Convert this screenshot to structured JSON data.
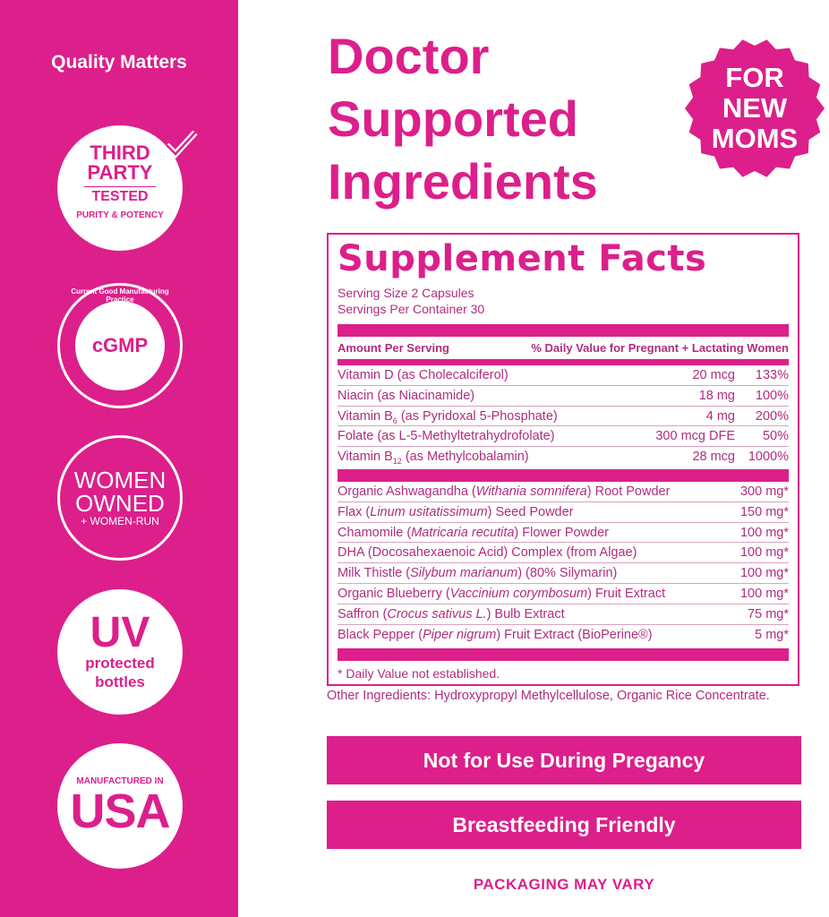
{
  "colors": {
    "brand_pink": "#dc1f8b",
    "text": "#b02d7d"
  },
  "sidebar": {
    "heading": "Quality Matters",
    "badges": [
      {
        "icon": "third-party-tested-icon",
        "lines": [
          "THIRD",
          "PARTY",
          "TESTED",
          "PURITY & POTENCY"
        ]
      },
      {
        "icon": "cgmp-icon",
        "lines": [
          "cGMP",
          "Current Good Manufacturing Practice"
        ]
      },
      {
        "icon": "women-owned-icon",
        "lines": [
          "WOMEN",
          "OWNED",
          "+ WOMEN-RUN"
        ]
      },
      {
        "icon": "uv-protected-icon",
        "lines": [
          "UV",
          "protected",
          "bottles"
        ]
      },
      {
        "icon": "made-in-usa-icon",
        "lines": [
          "MANUFACTURED IN",
          "USA"
        ]
      }
    ]
  },
  "title": [
    "Doctor",
    "Supported",
    "Ingredients"
  ],
  "sticker": [
    "FOR",
    "NEW",
    "MOMS"
  ],
  "facts": {
    "heading": "Supplement Facts",
    "serving_size": "Serving Size 2 Capsules",
    "servings": "Servings Per Container 30",
    "col_amount": "Amount Per Serving",
    "col_dv": "% Daily Value for Pregnant + Lactating Women",
    "vitamins": [
      {
        "parts": [
          {
            "t": "Vitamin D (as Cholecalciferol)"
          }
        ],
        "amount": "20 mcg",
        "dv": "133%"
      },
      {
        "parts": [
          {
            "t": "Niacin (as Niacinamide)"
          }
        ],
        "amount": "18 mg",
        "dv": "100%"
      },
      {
        "parts": [
          {
            "t": "Vitamin B"
          },
          {
            "t": "6",
            "s": "sub"
          },
          {
            "t": " (as Pyridoxal 5-Phosphate)"
          }
        ],
        "amount": "4 mg",
        "dv": "200%"
      },
      {
        "parts": [
          {
            "t": "Folate (as L-5-Methyltetrahydrofolate)"
          }
        ],
        "amount": "300 mcg DFE",
        "dv": "50%"
      },
      {
        "parts": [
          {
            "t": "Vitamin B"
          },
          {
            "t": "12",
            "s": "sub"
          },
          {
            "t": " (as Methylcobalamin)"
          }
        ],
        "amount": "28 mcg",
        "dv": "1000%"
      }
    ],
    "others": [
      {
        "parts": [
          {
            "t": "Organic Ashwagandha ("
          },
          {
            "t": "Withania somnifera",
            "s": "i"
          },
          {
            "t": ") Root Powder"
          }
        ],
        "amount": "300 mg*"
      },
      {
        "parts": [
          {
            "t": "Flax ("
          },
          {
            "t": "Linum usitatissimum",
            "s": "i"
          },
          {
            "t": ") Seed Powder"
          }
        ],
        "amount": "150 mg*"
      },
      {
        "parts": [
          {
            "t": "Chamomile ("
          },
          {
            "t": "Matricaria recutita",
            "s": "i"
          },
          {
            "t": ") Flower Powder"
          }
        ],
        "amount": "100 mg*"
      },
      {
        "parts": [
          {
            "t": "DHA (Docosahexaenoic Acid) Complex (from Algae)"
          }
        ],
        "amount": "100 mg*"
      },
      {
        "parts": [
          {
            "t": "Milk Thistle ("
          },
          {
            "t": "Silybum marianum",
            "s": "i"
          },
          {
            "t": ") (80% Silymarin)"
          }
        ],
        "amount": "100 mg*"
      },
      {
        "parts": [
          {
            "t": "Organic Blueberry ("
          },
          {
            "t": "Vaccinium corymbosum",
            "s": "i"
          },
          {
            "t": ") Fruit Extract"
          }
        ],
        "amount": "100 mg*"
      },
      {
        "parts": [
          {
            "t": "Saffron ("
          },
          {
            "t": "Crocus sativus L.",
            "s": "i"
          },
          {
            "t": ") Bulb Extract"
          }
        ],
        "amount": "75 mg*"
      },
      {
        "parts": [
          {
            "t": "Black Pepper ("
          },
          {
            "t": "Piper nigrum",
            "s": "i"
          },
          {
            "t": ") Fruit Extract (BioPerine®)"
          }
        ],
        "amount": "5 mg*"
      }
    ],
    "footnote": "* Daily Value not established."
  },
  "other_ingredients": "Other Ingredients: Hydroxypropyl Methylcellulose, Organic Rice Concentrate.",
  "banners": [
    "Not for Use During Pregancy",
    "Breastfeeding Friendly"
  ],
  "packaging_note": "PACKAGING MAY VARY"
}
